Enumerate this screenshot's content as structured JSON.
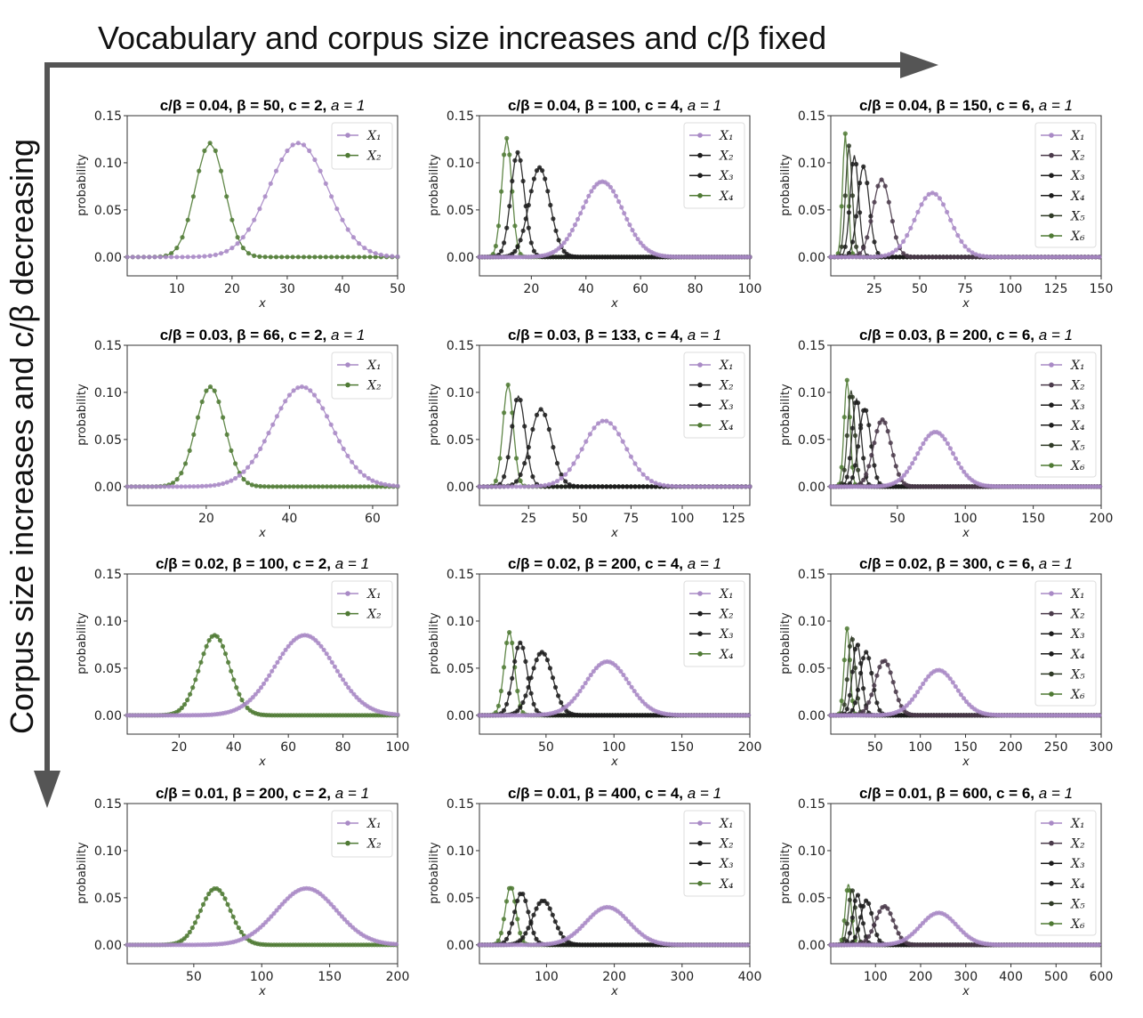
{
  "top_arrow_label": "Vocabulary and corpus size increases and c/β fixed",
  "left_arrow_label": "Corpus size increases and c/β decreasing",
  "colors": {
    "arrow": "#555555",
    "series": {
      "2": [
        "#a98ac6",
        "#4f7a34"
      ],
      "4": [
        "#a98ac6",
        "#1c1c1c",
        "#1c1c1c",
        "#4f7a34"
      ],
      "6": [
        "#a98ac6",
        "#4a3a4a",
        "#1c1c1c",
        "#1c1c1c",
        "#2f3a26",
        "#4f7a34"
      ]
    }
  },
  "chart_data": [
    {
      "type": "line",
      "title_main": "c/β = 0.04, β = 50, c = 2, ",
      "title_tail": "a = 1",
      "xlabel": "x",
      "ylabel": "probability",
      "xlim": [
        1,
        50
      ],
      "ylim": [
        -0.02,
        0.15
      ],
      "xticks": [
        10,
        20,
        30,
        40,
        50
      ],
      "yticks": [
        0.0,
        0.05,
        0.1,
        0.15
      ],
      "legend_position": "top-right",
      "series": [
        {
          "name": "X1",
          "peak_x": 32,
          "peak_y": 0.121
        },
        {
          "name": "X2",
          "peak_x": 16,
          "peak_y": 0.121
        }
      ]
    },
    {
      "type": "line",
      "title_main": "c/β = 0.04, β = 100, c = 4, ",
      "title_tail": "a = 1",
      "xlabel": "x",
      "ylabel": "probability",
      "xlim": [
        1,
        100
      ],
      "ylim": [
        -0.02,
        0.15
      ],
      "xticks": [
        20,
        40,
        60,
        80,
        100
      ],
      "yticks": [
        0.0,
        0.05,
        0.1,
        0.15
      ],
      "legend_position": "top-right",
      "series": [
        {
          "name": "X1",
          "peak_x": 46,
          "peak_y": 0.08
        },
        {
          "name": "X2",
          "peak_x": 23,
          "peak_y": 0.095
        },
        {
          "name": "X3",
          "peak_x": 15,
          "peak_y": 0.111
        },
        {
          "name": "X4",
          "peak_x": 11,
          "peak_y": 0.126
        }
      ]
    },
    {
      "type": "line",
      "title_main": "c/β = 0.04, β = 150, c = 6, ",
      "title_tail": "a = 1",
      "xlabel": "x",
      "ylabel": "probability",
      "xlim": [
        1,
        150
      ],
      "ylim": [
        -0.02,
        0.15
      ],
      "xticks": [
        25,
        50,
        75,
        100,
        125,
        150
      ],
      "yticks": [
        0.0,
        0.05,
        0.1,
        0.15
      ],
      "legend_position": "top-right",
      "series": [
        {
          "name": "X1",
          "peak_x": 57,
          "peak_y": 0.068
        },
        {
          "name": "X2",
          "peak_x": 29,
          "peak_y": 0.082
        },
        {
          "name": "X3",
          "peak_x": 19,
          "peak_y": 0.096
        },
        {
          "name": "X4",
          "peak_x": 14,
          "peak_y": 0.108
        },
        {
          "name": "X5",
          "peak_x": 11,
          "peak_y": 0.118
        },
        {
          "name": "X6",
          "peak_x": 9,
          "peak_y": 0.131
        }
      ]
    },
    {
      "type": "line",
      "title_main": "c/β = 0.03, β = 66, c = 2, ",
      "title_tail": "a = 1",
      "xlabel": "x",
      "ylabel": "probability",
      "xlim": [
        1,
        66
      ],
      "ylim": [
        -0.02,
        0.15
      ],
      "xticks": [
        20,
        40,
        60
      ],
      "yticks": [
        0.0,
        0.05,
        0.1,
        0.15
      ],
      "legend_position": "top-right",
      "series": [
        {
          "name": "X1",
          "peak_x": 43,
          "peak_y": 0.106
        },
        {
          "name": "X2",
          "peak_x": 21,
          "peak_y": 0.106
        }
      ]
    },
    {
      "type": "line",
      "title_main": "c/β = 0.03, β = 133, c = 4, ",
      "title_tail": "a = 1",
      "xlabel": "x",
      "ylabel": "probability",
      "xlim": [
        1,
        133
      ],
      "ylim": [
        -0.02,
        0.15
      ],
      "xticks": [
        25,
        50,
        75,
        100,
        125
      ],
      "yticks": [
        0.0,
        0.05,
        0.1,
        0.15
      ],
      "legend_position": "top-right",
      "series": [
        {
          "name": "X1",
          "peak_x": 62,
          "peak_y": 0.07
        },
        {
          "name": "X2",
          "peak_x": 31,
          "peak_y": 0.082
        },
        {
          "name": "X3",
          "peak_x": 20,
          "peak_y": 0.096
        },
        {
          "name": "X4",
          "peak_x": 15,
          "peak_y": 0.108
        }
      ]
    },
    {
      "type": "line",
      "title_main": "c/β = 0.03, β = 200, c = 6, ",
      "title_tail": "a = 1",
      "xlabel": "x",
      "ylabel": "probability",
      "xlim": [
        1,
        200
      ],
      "ylim": [
        -0.02,
        0.15
      ],
      "xticks": [
        50,
        100,
        150,
        200
      ],
      "yticks": [
        0.0,
        0.05,
        0.1,
        0.15
      ],
      "legend_position": "top-right",
      "series": [
        {
          "name": "X1",
          "peak_x": 78,
          "peak_y": 0.058
        },
        {
          "name": "X2",
          "peak_x": 39,
          "peak_y": 0.071
        },
        {
          "name": "X3",
          "peak_x": 26,
          "peak_y": 0.083
        },
        {
          "name": "X4",
          "peak_x": 20,
          "peak_y": 0.093
        },
        {
          "name": "X5",
          "peak_x": 16,
          "peak_y": 0.102
        },
        {
          "name": "X6",
          "peak_x": 13,
          "peak_y": 0.113
        }
      ]
    },
    {
      "type": "line",
      "title_main": "c/β = 0.02, β = 100, c = 2, ",
      "title_tail": "a = 1",
      "xlabel": "x",
      "ylabel": "probability",
      "xlim": [
        1,
        100
      ],
      "ylim": [
        -0.02,
        0.15
      ],
      "xticks": [
        20,
        40,
        60,
        80,
        100
      ],
      "yticks": [
        0.0,
        0.05,
        0.1,
        0.15
      ],
      "legend_position": "top-right",
      "series": [
        {
          "name": "X1",
          "peak_x": 66,
          "peak_y": 0.085
        },
        {
          "name": "X2",
          "peak_x": 33,
          "peak_y": 0.085
        }
      ]
    },
    {
      "type": "line",
      "title_main": "c/β = 0.02, β = 200, c = 4, ",
      "title_tail": "a = 1",
      "xlabel": "x",
      "ylabel": "probability",
      "xlim": [
        1,
        200
      ],
      "ylim": [
        -0.02,
        0.15
      ],
      "xticks": [
        50,
        100,
        150,
        200
      ],
      "yticks": [
        0.0,
        0.05,
        0.1,
        0.15
      ],
      "legend_position": "top-right",
      "series": [
        {
          "name": "X1",
          "peak_x": 95,
          "peak_y": 0.057
        },
        {
          "name": "X2",
          "peak_x": 47,
          "peak_y": 0.067
        },
        {
          "name": "X3",
          "peak_x": 31,
          "peak_y": 0.077
        },
        {
          "name": "X4",
          "peak_x": 23,
          "peak_y": 0.088
        }
      ]
    },
    {
      "type": "line",
      "title_main": "c/β = 0.02, β = 300, c = 6, ",
      "title_tail": "a = 1",
      "xlabel": "x",
      "ylabel": "probability",
      "xlim": [
        1,
        300
      ],
      "ylim": [
        -0.02,
        0.15
      ],
      "xticks": [
        50,
        100,
        150,
        200,
        250,
        300
      ],
      "yticks": [
        0.0,
        0.05,
        0.1,
        0.15
      ],
      "legend_position": "top-right",
      "series": [
        {
          "name": "X1",
          "peak_x": 120,
          "peak_y": 0.048
        },
        {
          "name": "X2",
          "peak_x": 60,
          "peak_y": 0.058
        },
        {
          "name": "X3",
          "peak_x": 40,
          "peak_y": 0.067
        },
        {
          "name": "X4",
          "peak_x": 30,
          "peak_y": 0.076
        },
        {
          "name": "X5",
          "peak_x": 24,
          "peak_y": 0.083
        },
        {
          "name": "X6",
          "peak_x": 19,
          "peak_y": 0.092
        }
      ]
    },
    {
      "type": "line",
      "title_main": "c/β = 0.01, β = 200, c = 2, ",
      "title_tail": "a = 1",
      "xlabel": "x",
      "ylabel": "probability",
      "xlim": [
        1,
        200
      ],
      "ylim": [
        -0.02,
        0.15
      ],
      "xticks": [
        50,
        100,
        150,
        200
      ],
      "yticks": [
        0.0,
        0.05,
        0.1,
        0.15
      ],
      "legend_position": "top-right",
      "series": [
        {
          "name": "X1",
          "peak_x": 133,
          "peak_y": 0.06
        },
        {
          "name": "X2",
          "peak_x": 66,
          "peak_y": 0.06
        }
      ]
    },
    {
      "type": "line",
      "title_main": "c/β = 0.01, β = 400, c = 4, ",
      "title_tail": "a = 1",
      "xlabel": "x",
      "ylabel": "probability",
      "xlim": [
        1,
        400
      ],
      "ylim": [
        -0.02,
        0.15
      ],
      "xticks": [
        100,
        200,
        300,
        400
      ],
      "yticks": [
        0.0,
        0.05,
        0.1,
        0.15
      ],
      "legend_position": "top-right",
      "series": [
        {
          "name": "X1",
          "peak_x": 190,
          "peak_y": 0.04
        },
        {
          "name": "X2",
          "peak_x": 95,
          "peak_y": 0.047
        },
        {
          "name": "X3",
          "peak_x": 63,
          "peak_y": 0.055
        },
        {
          "name": "X4",
          "peak_x": 47,
          "peak_y": 0.062
        }
      ]
    },
    {
      "type": "line",
      "title_main": "c/β = 0.01, β = 600, c = 6, ",
      "title_tail": "a = 1",
      "xlabel": "x",
      "ylabel": "probability",
      "xlim": [
        1,
        600
      ],
      "ylim": [
        -0.02,
        0.15
      ],
      "xticks": [
        100,
        200,
        300,
        400,
        500,
        600
      ],
      "yticks": [
        0.0,
        0.05,
        0.1,
        0.15
      ],
      "legend_position": "top-right",
      "series": [
        {
          "name": "X1",
          "peak_x": 240,
          "peak_y": 0.034
        },
        {
          "name": "X2",
          "peak_x": 120,
          "peak_y": 0.041
        },
        {
          "name": "X3",
          "peak_x": 80,
          "peak_y": 0.047
        },
        {
          "name": "X4",
          "peak_x": 60,
          "peak_y": 0.053
        },
        {
          "name": "X5",
          "peak_x": 48,
          "peak_y": 0.058
        },
        {
          "name": "X6",
          "peak_x": 40,
          "peak_y": 0.064
        }
      ]
    }
  ]
}
